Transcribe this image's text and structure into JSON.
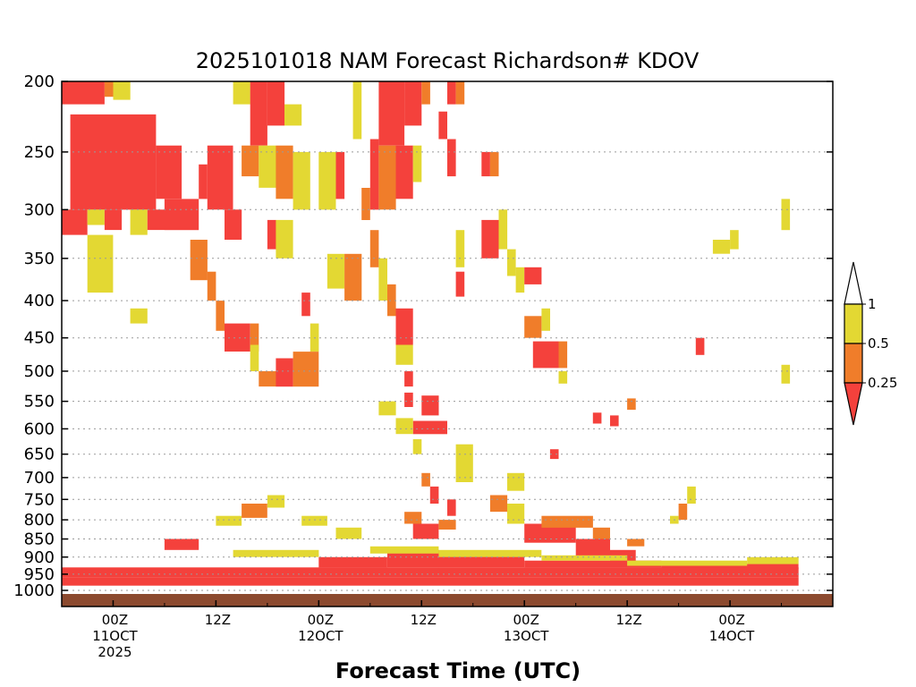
{
  "chart_data": {
    "type": "heatmap",
    "title": "2025101018 NAM Forecast Richardson# KDOV",
    "xlabel": "Forecast Time (UTC)",
    "ylabel": "",
    "y_scale": "pressure (log, inverted)",
    "ylim": [
      1000,
      200
    ],
    "xlim": [
      "2025-10-10 18Z",
      "2025-10-14 12Z"
    ],
    "y_ticks": [
      200,
      250,
      300,
      350,
      400,
      450,
      500,
      550,
      600,
      650,
      700,
      750,
      800,
      850,
      900,
      950,
      1000
    ],
    "x_ticks": [
      {
        "hour": 6,
        "lines": [
          "00Z",
          "11OCT",
          "2025"
        ]
      },
      {
        "hour": 18,
        "lines": [
          "12Z"
        ]
      },
      {
        "hour": 30,
        "lines": [
          "00Z",
          "12OCT"
        ]
      },
      {
        "hour": 42,
        "lines": [
          "12Z"
        ]
      },
      {
        "hour": 54,
        "lines": [
          "00Z",
          "13OCT"
        ]
      },
      {
        "hour": 66,
        "lines": [
          "12Z"
        ]
      },
      {
        "hour": 78,
        "lines": [
          "00Z",
          "14OCT"
        ]
      }
    ],
    "grid": "dotted horizontal at pressure levels",
    "legend": {
      "placement": "right",
      "levels": [
        "1",
        "0.5",
        "0.25"
      ],
      "bins": [
        {
          "range": "> 1",
          "color": "#ffffff"
        },
        {
          "range": "0.5 - 1",
          "color": "#e3d833"
        },
        {
          "range": "0.25 - 0.5",
          "color": "#f07d2a"
        },
        {
          "range": "< 0.25",
          "color": "#f4413c"
        }
      ]
    },
    "value_codes": {
      "Y": "0.5-1",
      "O": "0.25-0.5",
      "R": "<0.25"
    },
    "cells": [
      {
        "h": [
          0,
          5
        ],
        "p": [
          200,
          215
        ],
        "c": "R"
      },
      {
        "h": [
          5,
          6
        ],
        "p": [
          200,
          210
        ],
        "c": "O"
      },
      {
        "h": [
          6,
          8
        ],
        "p": [
          200,
          212
        ],
        "c": "Y"
      },
      {
        "h": [
          1,
          11
        ],
        "p": [
          222,
          300
        ],
        "c": "R"
      },
      {
        "h": [
          11,
          14
        ],
        "p": [
          245,
          290
        ],
        "c": "R"
      },
      {
        "h": [
          0,
          3
        ],
        "p": [
          300,
          325
        ],
        "c": "R"
      },
      {
        "h": [
          3,
          5
        ],
        "p": [
          300,
          315
        ],
        "c": "Y"
      },
      {
        "h": [
          5,
          7
        ],
        "p": [
          300,
          320
        ],
        "c": "R"
      },
      {
        "h": [
          8,
          10
        ],
        "p": [
          300,
          325
        ],
        "c": "Y"
      },
      {
        "h": [
          10,
          12
        ],
        "p": [
          300,
          320
        ],
        "c": "R"
      },
      {
        "h": [
          12,
          16
        ],
        "p": [
          290,
          320
        ],
        "c": "R"
      },
      {
        "h": [
          3,
          6
        ],
        "p": [
          325,
          390
        ],
        "c": "Y"
      },
      {
        "h": [
          8,
          10
        ],
        "p": [
          410,
          430
        ],
        "c": "Y"
      },
      {
        "h": [
          16,
          17
        ],
        "p": [
          260,
          290
        ],
        "c": "R"
      },
      {
        "h": [
          17,
          20
        ],
        "p": [
          245,
          300
        ],
        "c": "R"
      },
      {
        "h": [
          15,
          17
        ],
        "p": [
          330,
          375
        ],
        "c": "O"
      },
      {
        "h": [
          17,
          18
        ],
        "p": [
          365,
          400
        ],
        "c": "O"
      },
      {
        "h": [
          18,
          19
        ],
        "p": [
          400,
          440
        ],
        "c": "O"
      },
      {
        "h": [
          19,
          22
        ],
        "p": [
          430,
          470
        ],
        "c": "R"
      },
      {
        "h": [
          22,
          23
        ],
        "p": [
          430,
          470
        ],
        "c": "O"
      },
      {
        "h": [
          20,
          22
        ],
        "p": [
          200,
          215
        ],
        "c": "Y"
      },
      {
        "h": [
          22,
          24
        ],
        "p": [
          200,
          245
        ],
        "c": "R"
      },
      {
        "h": [
          24,
          26
        ],
        "p": [
          200,
          230
        ],
        "c": "R"
      },
      {
        "h": [
          26,
          28
        ],
        "p": [
          215,
          230
        ],
        "c": "Y"
      },
      {
        "h": [
          21,
          23
        ],
        "p": [
          245,
          270
        ],
        "c": "O"
      },
      {
        "h": [
          23,
          25
        ],
        "p": [
          245,
          280
        ],
        "c": "Y"
      },
      {
        "h": [
          25,
          27
        ],
        "p": [
          245,
          290
        ],
        "c": "O"
      },
      {
        "h": [
          27,
          29
        ],
        "p": [
          250,
          300
        ],
        "c": "Y"
      },
      {
        "h": [
          19,
          21
        ],
        "p": [
          300,
          330
        ],
        "c": "R"
      },
      {
        "h": [
          24,
          25
        ],
        "p": [
          310,
          340
        ],
        "c": "R"
      },
      {
        "h": [
          25,
          27
        ],
        "p": [
          310,
          350
        ],
        "c": "Y"
      },
      {
        "h": [
          22,
          23
        ],
        "p": [
          460,
          500
        ],
        "c": "Y"
      },
      {
        "h": [
          23,
          25
        ],
        "p": [
          500,
          525
        ],
        "c": "O"
      },
      {
        "h": [
          25,
          27
        ],
        "p": [
          480,
          525
        ],
        "c": "R"
      },
      {
        "h": [
          27,
          30
        ],
        "p": [
          470,
          525
        ],
        "c": "O"
      },
      {
        "h": [
          28,
          29
        ],
        "p": [
          390,
          420
        ],
        "c": "R"
      },
      {
        "h": [
          29,
          30
        ],
        "p": [
          430,
          470
        ],
        "c": "Y"
      },
      {
        "h": [
          30,
          32
        ],
        "p": [
          250,
          300
        ],
        "c": "Y"
      },
      {
        "h": [
          32,
          33
        ],
        "p": [
          250,
          290
        ],
        "c": "R"
      },
      {
        "h": [
          31,
          33
        ],
        "p": [
          345,
          385
        ],
        "c": "Y"
      },
      {
        "h": [
          33,
          35
        ],
        "p": [
          345,
          400
        ],
        "c": "O"
      },
      {
        "h": [
          35,
          36
        ],
        "p": [
          280,
          310
        ],
        "c": "O"
      },
      {
        "h": [
          36,
          37
        ],
        "p": [
          240,
          300
        ],
        "c": "R"
      },
      {
        "h": [
          34,
          35
        ],
        "p": [
          200,
          240
        ],
        "c": "Y"
      },
      {
        "h": [
          37,
          40
        ],
        "p": [
          200,
          245
        ],
        "c": "R"
      },
      {
        "h": [
          40,
          42
        ],
        "p": [
          200,
          230
        ],
        "c": "R"
      },
      {
        "h": [
          42,
          43
        ],
        "p": [
          200,
          215
        ],
        "c": "O"
      },
      {
        "h": [
          37,
          39
        ],
        "p": [
          245,
          300
        ],
        "c": "O"
      },
      {
        "h": [
          39,
          41
        ],
        "p": [
          245,
          290
        ],
        "c": "R"
      },
      {
        "h": [
          41,
          42
        ],
        "p": [
          245,
          275
        ],
        "c": "Y"
      },
      {
        "h": [
          36,
          37
        ],
        "p": [
          320,
          360
        ],
        "c": "O"
      },
      {
        "h": [
          37,
          38
        ],
        "p": [
          350,
          400
        ],
        "c": "Y"
      },
      {
        "h": [
          38,
          39
        ],
        "p": [
          380,
          420
        ],
        "c": "O"
      },
      {
        "h": [
          39,
          41
        ],
        "p": [
          410,
          460
        ],
        "c": "R"
      },
      {
        "h": [
          39,
          41
        ],
        "p": [
          460,
          490
        ],
        "c": "Y"
      },
      {
        "h": [
          40,
          41
        ],
        "p": [
          500,
          525
        ],
        "c": "R"
      },
      {
        "h": [
          40,
          41
        ],
        "p": [
          535,
          560
        ],
        "c": "R"
      },
      {
        "h": [
          42,
          44
        ],
        "p": [
          540,
          575
        ],
        "c": "R"
      },
      {
        "h": [
          41,
          45
        ],
        "p": [
          585,
          610
        ],
        "c": "R"
      },
      {
        "h": [
          37,
          39
        ],
        "p": [
          550,
          575
        ],
        "c": "Y"
      },
      {
        "h": [
          39,
          41
        ],
        "p": [
          580,
          610
        ],
        "c": "Y"
      },
      {
        "h": [
          41,
          42
        ],
        "p": [
          620,
          650
        ],
        "c": "Y"
      },
      {
        "h": [
          45,
          46
        ],
        "p": [
          200,
          215
        ],
        "c": "R"
      },
      {
        "h": [
          46,
          47
        ],
        "p": [
          200,
          215
        ],
        "c": "O"
      },
      {
        "h": [
          45,
          46
        ],
        "p": [
          240,
          270
        ],
        "c": "R"
      },
      {
        "h": [
          44,
          45
        ],
        "p": [
          220,
          240
        ],
        "c": "R"
      },
      {
        "h": [
          46,
          47
        ],
        "p": [
          320,
          360
        ],
        "c": "Y"
      },
      {
        "h": [
          46,
          47
        ],
        "p": [
          365,
          395
        ],
        "c": "R"
      },
      {
        "h": [
          46,
          48
        ],
        "p": [
          630,
          710
        ],
        "c": "Y"
      },
      {
        "h": [
          49,
          50
        ],
        "p": [
          250,
          270
        ],
        "c": "R"
      },
      {
        "h": [
          50,
          51
        ],
        "p": [
          250,
          270
        ],
        "c": "O"
      },
      {
        "h": [
          49,
          51
        ],
        "p": [
          310,
          350
        ],
        "c": "R"
      },
      {
        "h": [
          51,
          52
        ],
        "p": [
          300,
          340
        ],
        "c": "Y"
      },
      {
        "h": [
          52,
          53
        ],
        "p": [
          340,
          370
        ],
        "c": "Y"
      },
      {
        "h": [
          53,
          54
        ],
        "p": [
          360,
          390
        ],
        "c": "Y"
      },
      {
        "h": [
          54,
          56
        ],
        "p": [
          360,
          380
        ],
        "c": "R"
      },
      {
        "h": [
          54,
          56
        ],
        "p": [
          420,
          450
        ],
        "c": "O"
      },
      {
        "h": [
          56,
          57
        ],
        "p": [
          410,
          440
        ],
        "c": "Y"
      },
      {
        "h": [
          55,
          58
        ],
        "p": [
          455,
          495
        ],
        "c": "R"
      },
      {
        "h": [
          58,
          59
        ],
        "p": [
          455,
          495
        ],
        "c": "O"
      },
      {
        "h": [
          58,
          59
        ],
        "p": [
          500,
          520
        ],
        "c": "Y"
      },
      {
        "h": [
          66,
          67
        ],
        "p": [
          545,
          565
        ],
        "c": "O"
      },
      {
        "h": [
          62,
          63
        ],
        "p": [
          570,
          590
        ],
        "c": "R"
      },
      {
        "h": [
          64,
          65
        ],
        "p": [
          575,
          595
        ],
        "c": "R"
      },
      {
        "h": [
          57,
          58
        ],
        "p": [
          640,
          660
        ],
        "c": "R"
      },
      {
        "h": [
          52,
          54
        ],
        "p": [
          690,
          730
        ],
        "c": "Y"
      },
      {
        "h": [
          50,
          52
        ],
        "p": [
          740,
          780
        ],
        "c": "O"
      },
      {
        "h": [
          52,
          54
        ],
        "p": [
          760,
          810
        ],
        "c": "Y"
      },
      {
        "h": [
          54,
          60
        ],
        "p": [
          810,
          860
        ],
        "c": "R"
      },
      {
        "h": [
          60,
          64
        ],
        "p": [
          850,
          900
        ],
        "c": "R"
      },
      {
        "h": [
          64,
          67
        ],
        "p": [
          880,
          920
        ],
        "c": "R"
      },
      {
        "h": [
          56,
          62
        ],
        "p": [
          790,
          820
        ],
        "c": "O"
      },
      {
        "h": [
          62,
          64
        ],
        "p": [
          820,
          850
        ],
        "c": "O"
      },
      {
        "h": [
          66,
          68
        ],
        "p": [
          850,
          870
        ],
        "c": "O"
      },
      {
        "h": [
          73,
          74
        ],
        "p": [
          720,
          760
        ],
        "c": "Y"
      },
      {
        "h": [
          72,
          73
        ],
        "p": [
          760,
          800
        ],
        "c": "O"
      },
      {
        "h": [
          71,
          72
        ],
        "p": [
          790,
          810
        ],
        "c": "Y"
      },
      {
        "h": [
          74,
          75
        ],
        "p": [
          450,
          475
        ],
        "c": "R"
      },
      {
        "h": [
          76,
          78
        ],
        "p": [
          330,
          345
        ],
        "c": "Y"
      },
      {
        "h": [
          78,
          79
        ],
        "p": [
          320,
          340
        ],
        "c": "Y"
      },
      {
        "h": [
          84,
          85
        ],
        "p": [
          290,
          320
        ],
        "c": "Y"
      },
      {
        "h": [
          84,
          85
        ],
        "p": [
          490,
          520
        ],
        "c": "Y"
      },
      {
        "h": [
          0,
          86
        ],
        "p": [
          930,
          960
        ],
        "c": "R"
      },
      {
        "h": [
          0,
          86
        ],
        "p": [
          960,
          985
        ],
        "c": "R"
      },
      {
        "h": [
          30,
          38
        ],
        "p": [
          900,
          930
        ],
        "c": "R"
      },
      {
        "h": [
          38,
          44
        ],
        "p": [
          880,
          930
        ],
        "c": "R"
      },
      {
        "h": [
          44,
          54
        ],
        "p": [
          890,
          930
        ],
        "c": "R"
      },
      {
        "h": [
          54,
          70
        ],
        "p": [
          910,
          930
        ],
        "c": "R"
      },
      {
        "h": [
          70,
          86
        ],
        "p": [
          920,
          935
        ],
        "c": "R"
      },
      {
        "h": [
          20,
          30
        ],
        "p": [
          880,
          900
        ],
        "c": "Y"
      },
      {
        "h": [
          36,
          44
        ],
        "p": [
          870,
          890
        ],
        "c": "Y"
      },
      {
        "h": [
          44,
          56
        ],
        "p": [
          880,
          900
        ],
        "c": "Y"
      },
      {
        "h": [
          56,
          66
        ],
        "p": [
          895,
          910
        ],
        "c": "Y"
      },
      {
        "h": [
          66,
          80
        ],
        "p": [
          910,
          925
        ],
        "c": "Y"
      },
      {
        "h": [
          80,
          86
        ],
        "p": [
          900,
          920
        ],
        "c": "Y"
      },
      {
        "h": [
          12,
          16
        ],
        "p": [
          850,
          880
        ],
        "c": "R"
      },
      {
        "h": [
          18,
          21
        ],
        "p": [
          790,
          815
        ],
        "c": "Y"
      },
      {
        "h": [
          21,
          24
        ],
        "p": [
          760,
          795
        ],
        "c": "O"
      },
      {
        "h": [
          24,
          26
        ],
        "p": [
          740,
          770
        ],
        "c": "Y"
      },
      {
        "h": [
          28,
          31
        ],
        "p": [
          790,
          815
        ],
        "c": "Y"
      },
      {
        "h": [
          32,
          35
        ],
        "p": [
          820,
          850
        ],
        "c": "Y"
      },
      {
        "h": [
          40,
          42
        ],
        "p": [
          780,
          810
        ],
        "c": "O"
      },
      {
        "h": [
          41,
          44
        ],
        "p": [
          810,
          850
        ],
        "c": "R"
      },
      {
        "h": [
          44,
          46
        ],
        "p": [
          800,
          825
        ],
        "c": "O"
      },
      {
        "h": [
          42,
          43
        ],
        "p": [
          690,
          720
        ],
        "c": "O"
      },
      {
        "h": [
          43,
          44
        ],
        "p": [
          720,
          760
        ],
        "c": "R"
      },
      {
        "h": [
          45,
          46
        ],
        "p": [
          750,
          790
        ],
        "c": "R"
      }
    ]
  }
}
